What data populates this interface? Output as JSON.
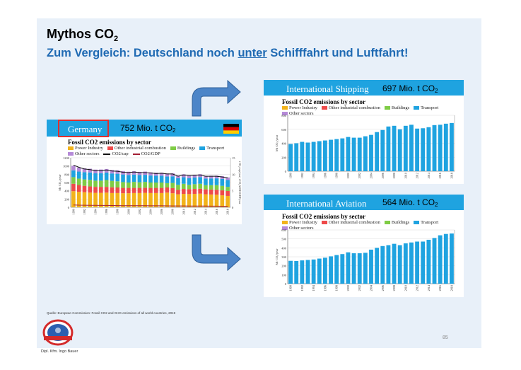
{
  "slide": {
    "title_main": "Mythos CO",
    "title_sub": "2",
    "subtitle_pre": "Zum Vergleich: Deutschland noch ",
    "subtitle_u": "unter",
    "subtitle_post": " Schifffahrt und Luftfahrt!",
    "source": "Quelle: European Commission: Fossil CO2 and GHG emissions of all world countries, 2019",
    "page_number": "85",
    "author": "Dipl. Kfm. Ingo Bauer"
  },
  "germany": {
    "name": "Germany",
    "value_pre": "752 Mio. t CO",
    "value_sub": "2",
    "chart_title": "Fossil CO2 emissions by sector",
    "ylabel": "Mt CO₂/year",
    "y2label": "t CO₂/cap/year | t CO₂/kUSD/GDP/year",
    "legend": [
      {
        "label": "Power Industry",
        "color": "#f2b31b"
      },
      {
        "label": "Other industrial combustion",
        "color": "#ee4a4a"
      },
      {
        "label": "Buildings",
        "color": "#7fcc45"
      },
      {
        "label": "Transport",
        "color": "#1fa3e0"
      },
      {
        "label": "Other sectors",
        "color": "#b58ad8"
      },
      {
        "label": "CO2/cap",
        "color": "#111111"
      },
      {
        "label": "CO2/GDP",
        "color": "#a31f34"
      }
    ],
    "yticks": [
      "0",
      "200",
      "400",
      "600",
      "800",
      "1000",
      "1200"
    ],
    "y2ticks": [
      "0",
      "5",
      "10",
      "15"
    ],
    "xticks": [
      "1990",
      "1992",
      "1994",
      "1996",
      "1998",
      "2000",
      "2002",
      "2004",
      "2006",
      "2008",
      "2010",
      "2012",
      "2014",
      "2016",
      "2018"
    ],
    "flag_colors": [
      "#000000",
      "#dd0000",
      "#ffce00"
    ]
  },
  "shipping": {
    "name": "International Shipping",
    "value_pre": "697 Mio. t CO",
    "value_sub": "2",
    "chart_title": "Fossil CO2 emissions by sector",
    "ylabel": "Mt CO₂/year",
    "legend": [
      {
        "label": "Power Industry",
        "color": "#f2b31b"
      },
      {
        "label": "Other industrial combustion",
        "color": "#ee4a4a"
      },
      {
        "label": "Buildings",
        "color": "#7fcc45"
      },
      {
        "label": "Transport",
        "color": "#1fa3e0"
      },
      {
        "label": "Other sectors",
        "color": "#b58ad8"
      }
    ],
    "yticks": [
      "0",
      "200",
      "400",
      "600",
      "800"
    ],
    "xticks": [
      "1990",
      "1992",
      "1994",
      "1996",
      "1998",
      "2000",
      "2002",
      "2004",
      "2006",
      "2008",
      "2010",
      "2012",
      "2014",
      "2016",
      "2018"
    ]
  },
  "aviation": {
    "name": "International Aviation",
    "value_pre": "564 Mio. t CO",
    "value_sub": "2",
    "chart_title": "Fossil CO2 emissions by sector",
    "ylabel": "Mt CO₂/year",
    "legend": [
      {
        "label": "Power Industry",
        "color": "#f2b31b"
      },
      {
        "label": "Other industrial combustion",
        "color": "#ee4a4a"
      },
      {
        "label": "Buildings",
        "color": "#7fcc45"
      },
      {
        "label": "Transport",
        "color": "#1fa3e0"
      },
      {
        "label": "Other sectors",
        "color": "#b58ad8"
      }
    ],
    "yticks": [
      "0",
      "100",
      "200",
      "300",
      "400",
      "500",
      "600"
    ],
    "xticks": [
      "1990",
      "1992",
      "1994",
      "1996",
      "1998",
      "2000",
      "2002",
      "2004",
      "2006",
      "2008",
      "2010",
      "2012",
      "2014",
      "2016",
      "2018"
    ]
  },
  "chart_data": [
    {
      "type": "bar",
      "stacked": true,
      "title": "Fossil CO2 emissions by sector",
      "ylabel": "Mt CO₂/year",
      "ylim": [
        0,
        1200
      ],
      "categories": [
        1990,
        1991,
        1992,
        1993,
        1994,
        1995,
        1996,
        1997,
        1998,
        1999,
        2000,
        2001,
        2002,
        2003,
        2004,
        2005,
        2006,
        2007,
        2008,
        2009,
        2010,
        2011,
        2012,
        2013,
        2014,
        2015,
        2016,
        2017,
        2018
      ],
      "series": [
        {
          "name": "Power Industry",
          "values": [
            390,
            375,
            365,
            355,
            350,
            350,
            355,
            345,
            345,
            340,
            340,
            345,
            345,
            350,
            345,
            345,
            345,
            355,
            340,
            315,
            325,
            320,
            325,
            330,
            315,
            310,
            305,
            290,
            275
          ]
        },
        {
          "name": "Other industrial combustion",
          "values": [
            180,
            165,
            155,
            150,
            145,
            145,
            140,
            140,
            135,
            130,
            130,
            125,
            125,
            125,
            125,
            125,
            125,
            125,
            125,
            110,
            120,
            120,
            120,
            120,
            120,
            120,
            120,
            120,
            120
          ]
        },
        {
          "name": "Buildings",
          "values": [
            160,
            155,
            155,
            160,
            150,
            150,
            165,
            155,
            150,
            140,
            130,
            145,
            135,
            140,
            130,
            130,
            130,
            105,
            125,
            120,
            125,
            105,
            115,
            120,
            100,
            105,
            110,
            110,
            100
          ]
        },
        {
          "name": "Transport",
          "values": [
            165,
            170,
            175,
            180,
            178,
            180,
            180,
            180,
            182,
            185,
            182,
            178,
            176,
            172,
            170,
            165,
            165,
            162,
            160,
            158,
            158,
            160,
            160,
            162,
            162,
            164,
            166,
            168,
            165
          ]
        },
        {
          "name": "Other sectors",
          "values": [
            110,
            100,
            95,
            90,
            90,
            90,
            88,
            85,
            85,
            82,
            80,
            80,
            78,
            78,
            76,
            75,
            74,
            72,
            72,
            68,
            70,
            68,
            68,
            68,
            66,
            66,
            66,
            66,
            64
          ]
        }
      ],
      "lines": [
        {
          "name": "CO2/cap",
          "axis": "right",
          "y2lim": [
            0,
            15
          ],
          "values": [
            12.8,
            12.1,
            11.6,
            11.4,
            11.1,
            11.1,
            11.3,
            11.0,
            10.9,
            10.6,
            10.5,
            10.7,
            10.5,
            10.5,
            10.4,
            10.2,
            10.3,
            10.1,
            10.1,
            9.4,
            9.8,
            9.6,
            9.7,
            9.8,
            9.4,
            9.4,
            9.4,
            9.2,
            8.9
          ]
        },
        {
          "name": "CO2/GDP",
          "axis": "right",
          "y2lim": [
            0,
            15
          ],
          "values": [
            0.7,
            0.65,
            0.62,
            0.6,
            0.58,
            0.56,
            0.56,
            0.54,
            0.52,
            0.5,
            0.48,
            0.48,
            0.47,
            0.47,
            0.46,
            0.45,
            0.44,
            0.42,
            0.41,
            0.4,
            0.4,
            0.38,
            0.38,
            0.38,
            0.36,
            0.35,
            0.34,
            0.33,
            0.32
          ]
        }
      ]
    },
    {
      "type": "bar",
      "title": "Fossil CO2 emissions by sector",
      "ylabel": "Mt CO₂/year",
      "ylim": [
        0,
        800
      ],
      "categories": [
        1990,
        1991,
        1992,
        1993,
        1994,
        1995,
        1996,
        1997,
        1998,
        1999,
        2000,
        2001,
        2002,
        2003,
        2004,
        2005,
        2006,
        2007,
        2008,
        2009,
        2010,
        2011,
        2012,
        2013,
        2014,
        2015,
        2016,
        2017,
        2018
      ],
      "series": [
        {
          "name": "Transport",
          "values": [
            390,
            400,
            420,
            410,
            420,
            430,
            440,
            450,
            460,
            470,
            490,
            480,
            480,
            500,
            520,
            560,
            590,
            640,
            650,
            600,
            650,
            665,
            610,
            615,
            630,
            660,
            665,
            680,
            690
          ]
        }
      ]
    },
    {
      "type": "bar",
      "title": "Fossil CO2 emissions by sector",
      "ylabel": "Mt CO₂/year",
      "ylim": [
        0,
        600
      ],
      "categories": [
        1990,
        1991,
        1992,
        1993,
        1994,
        1995,
        1996,
        1997,
        1998,
        1999,
        2000,
        2001,
        2002,
        2003,
        2004,
        2005,
        2006,
        2007,
        2008,
        2009,
        2010,
        2011,
        2012,
        2013,
        2014,
        2015,
        2016,
        2017,
        2018
      ],
      "series": [
        {
          "name": "Transport",
          "values": [
            255,
            253,
            260,
            265,
            270,
            280,
            290,
            305,
            320,
            330,
            350,
            340,
            340,
            345,
            380,
            400,
            420,
            430,
            445,
            430,
            450,
            460,
            470,
            470,
            490,
            510,
            540,
            555,
            560
          ]
        }
      ]
    }
  ]
}
